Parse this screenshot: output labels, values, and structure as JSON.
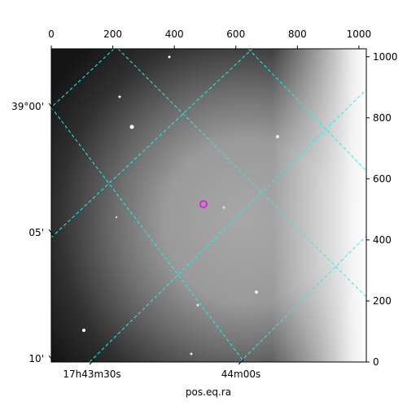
{
  "chart_data": {
    "type": "image",
    "xlabel": "pos.eq.ra",
    "xlim": [
      0,
      1024
    ],
    "xticks": [
      0,
      200,
      400,
      600,
      800,
      1000
    ],
    "ylim": [
      0,
      1026
    ],
    "yticks": [
      0,
      200,
      400,
      600,
      800,
      1000
    ],
    "ra_ticks": [
      "17h43m30s",
      "44m00s"
    ],
    "dec_ticks": [
      "39°00'",
      "05'",
      "10'"
    ]
  }
}
